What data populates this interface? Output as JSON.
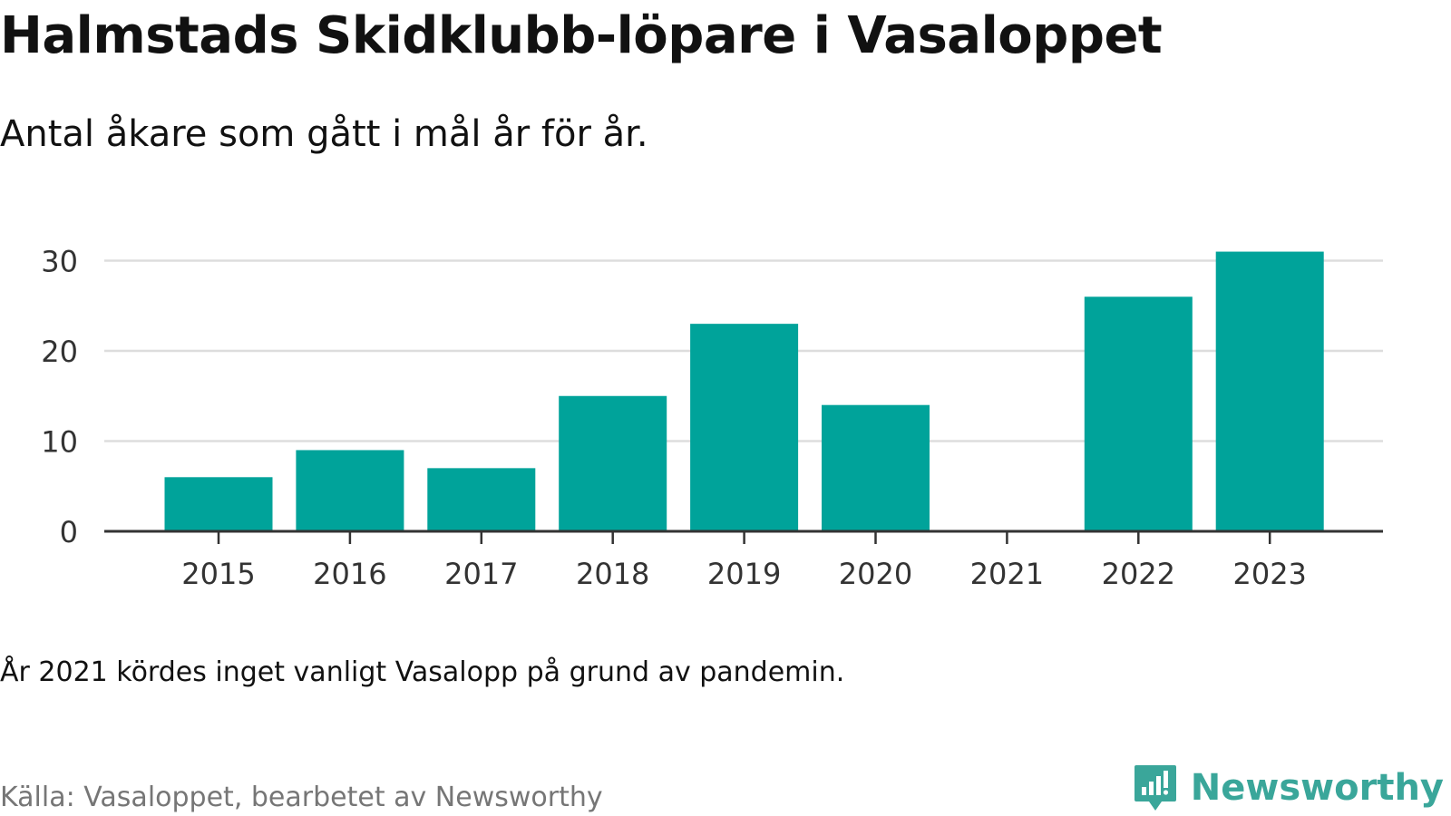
{
  "header": {
    "title": "Halmstads Skidklubb-löpare i Vasaloppet",
    "subtitle": "Antal åkare som gått i mål år för år."
  },
  "footer": {
    "note": "År 2021 kördes inget vanligt Vasalopp på grund av pandemin.",
    "source": "Källa: Vasaloppet, bearbetet av Newsworthy",
    "logo_text": "Newsworthy",
    "logo_icon": "newsworthy-logo-icon"
  },
  "colors": {
    "bar": "#00a39a",
    "grid": "#dddddd",
    "axis": "#333333",
    "tick_text": "#333333",
    "logo": "#3aa69a"
  },
  "chart_data": {
    "type": "bar",
    "title": "Halmstads Skidklubb-löpare i Vasaloppet",
    "subtitle": "Antal åkare som gått i mål år för år.",
    "xlabel": "",
    "ylabel": "",
    "categories": [
      "2015",
      "2016",
      "2017",
      "2018",
      "2019",
      "2020",
      "2021",
      "2022",
      "2023"
    ],
    "values": [
      6,
      9,
      7,
      15,
      23,
      14,
      0,
      26,
      31
    ],
    "ylim": [
      0,
      31
    ],
    "yticks": [
      0,
      10,
      20,
      30
    ],
    "grid": true,
    "legend": "none"
  }
}
